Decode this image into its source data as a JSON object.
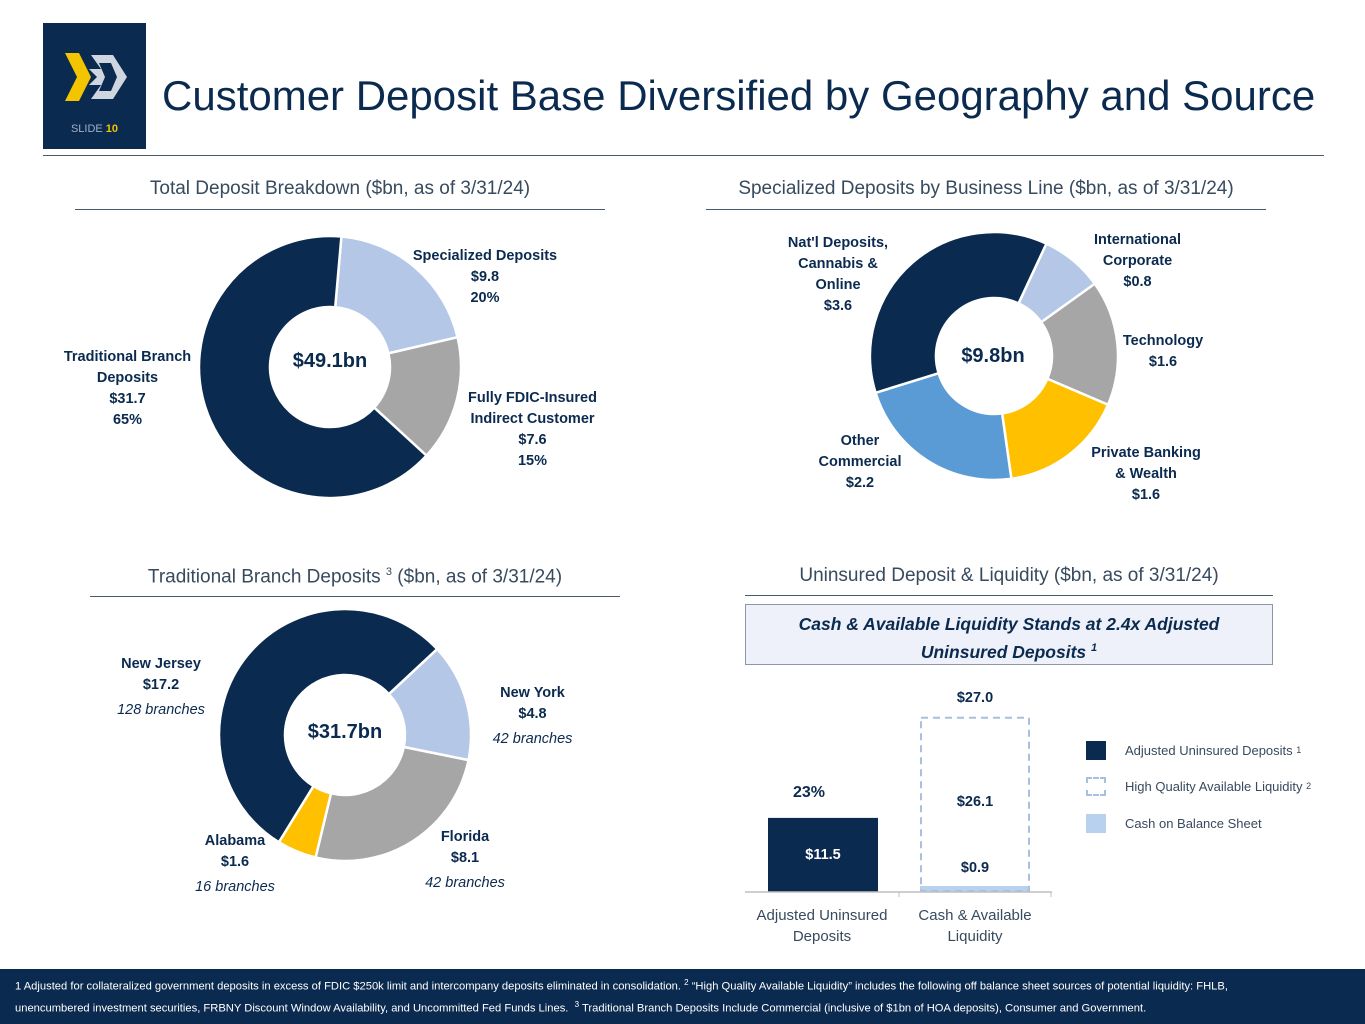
{
  "slide": {
    "label": "SLIDE",
    "number": "10"
  },
  "title": "Customer Deposit Base Diversified by Geography and Source",
  "colors": {
    "navy": "#0b2a4f",
    "light_blue": "#b4c7e7",
    "gray": "#a6a6a6",
    "gold": "#ffc000",
    "mid_blue": "#5b9bd5",
    "accent_yellow": "#f3c400"
  },
  "sections": {
    "total": {
      "title": "Total Deposit Breakdown ($bn, as of 3/31/24)"
    },
    "specialized": {
      "title": "Specialized Deposits by Business Line ($bn, as of 3/31/24)"
    },
    "branch": {
      "title_a": "Traditional Branch Deposits",
      "title_sup": "3",
      "title_b": "($bn, as of 3/31/24)"
    },
    "liquidity": {
      "title": "Uninsured Deposit & Liquidity ($bn, as of 3/31/24)"
    }
  },
  "chart_data": [
    {
      "type": "pie",
      "title": "Total Deposit Breakdown ($bn, as of 3/31/24)",
      "center_label": "$49.1bn",
      "slices": [
        {
          "label": "Specialized Deposits",
          "value": 9.8,
          "value_text": "$9.8",
          "pct": "20%",
          "color": "#b4c7e7"
        },
        {
          "label": "Fully FDIC-Insured Indirect Customer",
          "label_1": "Fully FDIC-Insured",
          "label_2": "Indirect Customer",
          "value": 7.6,
          "value_text": "$7.6",
          "pct": "15%",
          "color": "#a6a6a6"
        },
        {
          "label": "Traditional Branch Deposits",
          "label_1": "Traditional Branch",
          "label_2": "Deposits",
          "value": 31.7,
          "value_text": "$31.7",
          "pct": "65%",
          "color": "#0b2a4f"
        }
      ]
    },
    {
      "type": "pie",
      "title": "Specialized Deposits by Business Line ($bn, as of 3/31/24)",
      "center_label": "$9.8bn",
      "slices": [
        {
          "label": "International Corporate",
          "label_1": "International",
          "label_2": "Corporate",
          "value": 0.8,
          "value_text": "$0.8",
          "color": "#b4c7e7"
        },
        {
          "label": "Technology",
          "value": 1.6,
          "value_text": "$1.6",
          "color": "#a6a6a6"
        },
        {
          "label": "Private Banking & Wealth",
          "label_1": "Private Banking",
          "label_2": "& Wealth",
          "value": 1.6,
          "value_text": "$1.6",
          "color": "#ffc000"
        },
        {
          "label": "Other Commercial",
          "label_1": "Other",
          "label_2": "Commercial",
          "value": 2.2,
          "value_text": "$2.2",
          "color": "#5b9bd5"
        },
        {
          "label": "Nat'l Deposits, Cannabis & Online",
          "label_1": "Nat'l Deposits,",
          "label_2": "Cannabis &",
          "label_3": "Online",
          "value": 3.6,
          "value_text": "$3.6",
          "color": "#0b2a4f"
        }
      ]
    },
    {
      "type": "pie",
      "title": "Traditional Branch Deposits 3 ($bn, as of 3/31/24)",
      "center_label": "$31.7bn",
      "slices": [
        {
          "label": "New York",
          "value": 4.8,
          "value_text": "$4.8",
          "branches": "42 branches",
          "color": "#b4c7e7"
        },
        {
          "label": "Florida",
          "value": 8.1,
          "value_text": "$8.1",
          "branches": "42 branches",
          "color": "#a6a6a6"
        },
        {
          "label": "Alabama",
          "value": 1.6,
          "value_text": "$1.6",
          "branches": "16 branches",
          "color": "#ffc000"
        },
        {
          "label": "New Jersey",
          "value": 17.2,
          "value_text": "$17.2",
          "branches": "128 branches",
          "color": "#0b2a4f"
        }
      ]
    },
    {
      "type": "bar",
      "title": "Uninsured Deposit & Liquidity ($bn, as of 3/31/24)",
      "callout": "Cash & Available Liquidity Stands at 2.4x Adjusted Uninsured Deposits",
      "callout_line1": "Cash & Available Liquidity Stands at 2.4x Adjusted",
      "callout_line2": "Uninsured Deposits",
      "callout_sup": "1",
      "categories": [
        "Adjusted Uninsured Deposits",
        "Cash & Available Liquidity"
      ],
      "category_lines": [
        [
          "Adjusted Uninsured",
          "Deposits"
        ],
        [
          "Cash & Available",
          "Liquidity"
        ]
      ],
      "series": [
        {
          "name": "Adjusted Uninsured Deposits",
          "sup": "1",
          "values": [
            11.5,
            0
          ],
          "color": "#0b2a4f"
        },
        {
          "name": "Cash on Balance Sheet",
          "values": [
            0,
            0.9
          ],
          "color": "#b8d1ee"
        },
        {
          "name": "High Quality Available Liquidity",
          "sup": "2",
          "values": [
            0,
            26.1
          ],
          "style": "dashed"
        }
      ],
      "data_labels": {
        "adjusted": "$11.5",
        "cash": "$0.9",
        "hqla": "$26.1",
        "total": "$27.0",
        "pct": "23%"
      },
      "ylim": [
        0,
        28
      ]
    }
  ],
  "footer": {
    "line1_a": "1 Adjusted for collateralized government deposits in excess of FDIC $250k limit and intercompany deposits eliminated in consolidation.",
    "sup2": "2",
    "line1_b": "“High Quality Available Liquidity” includes the following off balance sheet sources of potential liquidity: FHLB,",
    "line2_a": "unencumbered investment securities, FRBNY Discount Window Availability, and Uncommitted Fed Funds Lines.",
    "sup3": "3",
    "line2_b": "Traditional Branch Deposits Include Commercial (inclusive of $1bn of HOA deposits), Consumer and Government."
  }
}
